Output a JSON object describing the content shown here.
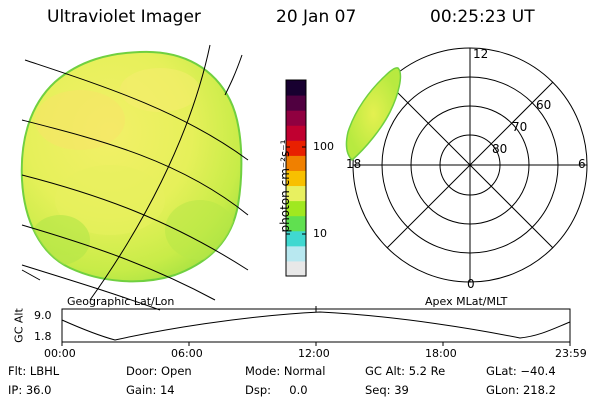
{
  "header": {
    "title": "Ultraviolet Imager",
    "date": "20 Jan 07",
    "time": "00:25:23 UT"
  },
  "geo_panel": {
    "caption": "Geographic Lat/Lon"
  },
  "colorbar": {
    "unit_label": "photon cm⁻²s⁻¹",
    "ticks": [
      "100",
      "10"
    ],
    "colors": [
      "#e8e8e8",
      "#b8e8f0",
      "#40d8d0",
      "#60e050",
      "#a0e820",
      "#e8f060",
      "#f8c000",
      "#f08000",
      "#e82000",
      "#c00030",
      "#900040",
      "#500040",
      "#180030"
    ]
  },
  "polar_panel": {
    "caption": "Apex MLat/MLT",
    "mlt_labels": [
      "12",
      "18",
      "6",
      "0"
    ],
    "mlat_labels": [
      "60",
      "70",
      "80"
    ]
  },
  "altitude_plot": {
    "ylabel": "GC Alt",
    "yticks": [
      "9.0",
      "1.8"
    ],
    "xticks": [
      "00:00",
      "06:00",
      "12:00",
      "18:00",
      "23:59"
    ]
  },
  "info": {
    "row1": [
      {
        "label": "Flt: LBHL"
      },
      {
        "label": "Door: Open"
      },
      {
        "label": "Mode: Normal"
      },
      {
        "label": "GC Alt: 5.2 Re"
      },
      {
        "label": "GLat: −40.4"
      }
    ],
    "row2": [
      {
        "label": "IP: 36.0"
      },
      {
        "label": "Gain: 14"
      },
      {
        "label": "Dsp:     0.0"
      },
      {
        "label": "Seq: 39"
      },
      {
        "label": "GLon: 218.2"
      }
    ]
  }
}
